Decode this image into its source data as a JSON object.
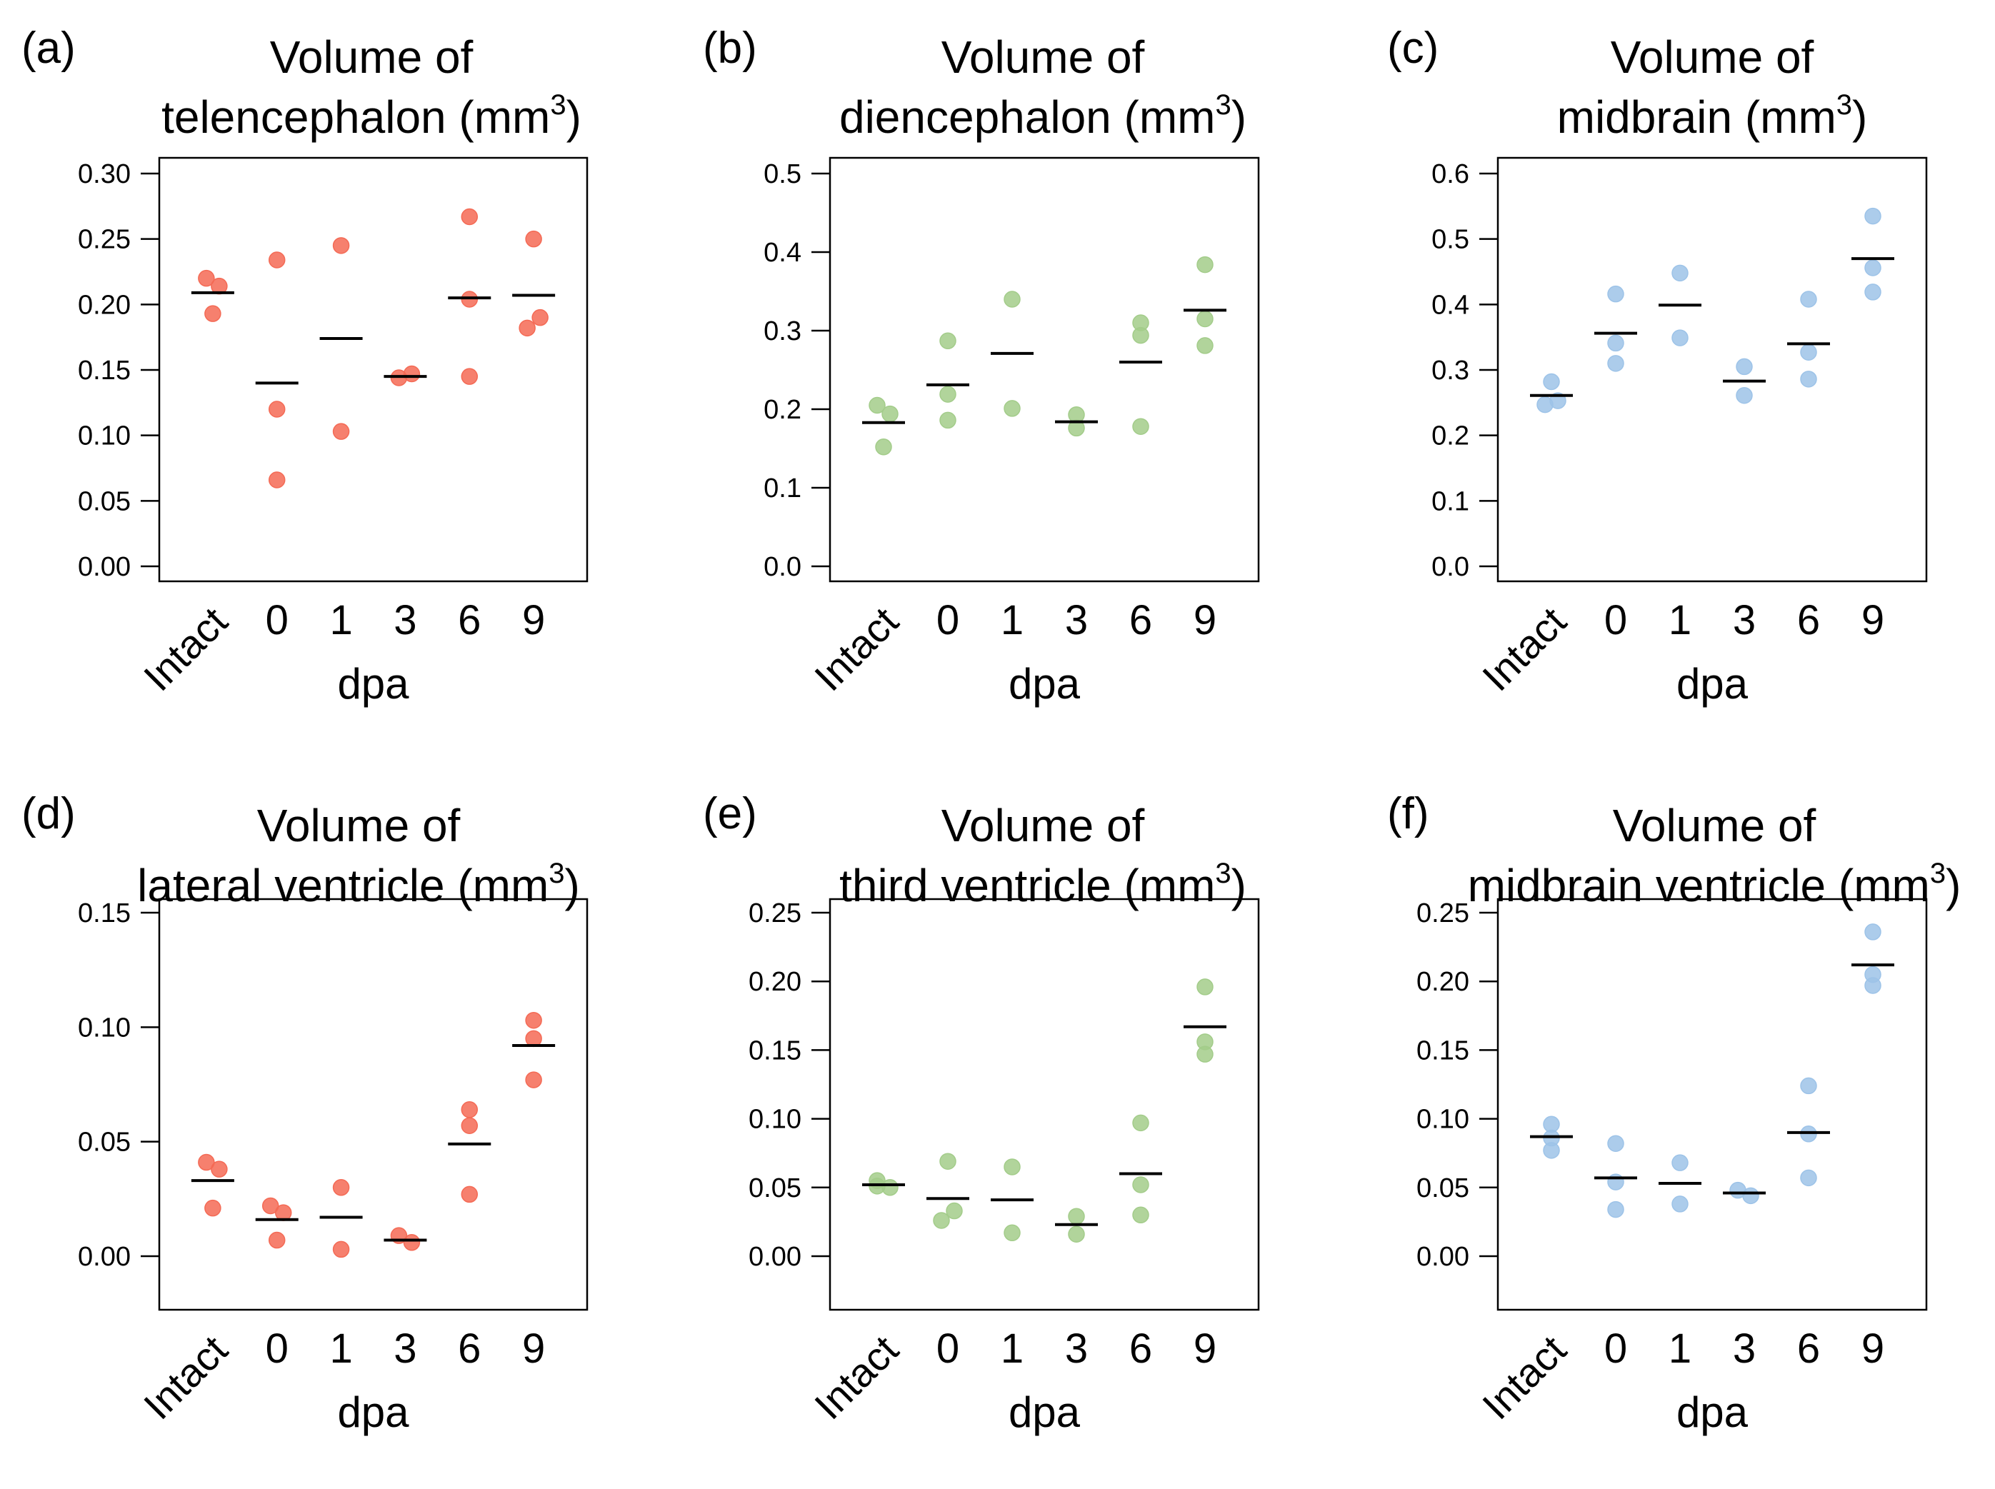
{
  "chart_data": [
    {
      "type": "scatter",
      "panel_label": "(a)",
      "title_line1": "Volume of",
      "title_line2": "telencephalon (mm",
      "title_sup": "3",
      "title_close": ")",
      "xlabel": "dpa",
      "ylabel": "",
      "categories": [
        "Intact",
        "0",
        "1",
        "3",
        "6",
        "9"
      ],
      "ylim": [
        0,
        0.3
      ],
      "yticks": [
        "0.00",
        "0.05",
        "0.10",
        "0.15",
        "0.20",
        "0.25",
        "0.30"
      ],
      "color": "#F46A55",
      "points": [
        [
          0.22,
          0.214,
          0.193
        ],
        [
          0.234,
          0.12,
          0.066
        ],
        [
          0.245,
          0.103
        ],
        [
          0.144,
          0.147
        ],
        [
          0.267,
          0.204,
          0.145
        ],
        [
          0.25,
          0.19,
          0.182
        ]
      ],
      "means": [
        0.209,
        0.14,
        0.174,
        0.145,
        0.205,
        0.207
      ]
    },
    {
      "type": "scatter",
      "panel_label": "(b)",
      "title_line1": "Volume of",
      "title_line2": "diencephalon (mm",
      "title_sup": "3",
      "title_close": ")",
      "xlabel": "dpa",
      "ylabel": "",
      "categories": [
        "Intact",
        "0",
        "1",
        "3",
        "6",
        "9"
      ],
      "ylim": [
        0,
        0.5
      ],
      "yticks": [
        "0.0",
        "0.1",
        "0.2",
        "0.3",
        "0.4",
        "0.5"
      ],
      "color": "#A3CC8A",
      "points": [
        [
          0.205,
          0.194,
          0.152
        ],
        [
          0.287,
          0.219,
          0.186
        ],
        [
          0.34,
          0.201
        ],
        [
          0.193,
          0.176
        ],
        [
          0.31,
          0.294,
          0.178
        ],
        [
          0.384,
          0.315,
          0.281
        ]
      ],
      "means": [
        0.183,
        0.231,
        0.271,
        0.184,
        0.26,
        0.326
      ]
    },
    {
      "type": "scatter",
      "panel_label": "(c)",
      "title_line1": "Volume of",
      "title_line2": "midbrain (mm",
      "title_sup": "3",
      "title_close": ")",
      "xlabel": "dpa",
      "ylabel": "",
      "categories": [
        "Intact",
        "0",
        "1",
        "3",
        "6",
        "9"
      ],
      "ylim": [
        0,
        0.6
      ],
      "yticks": [
        "0.0",
        "0.1",
        "0.2",
        "0.3",
        "0.4",
        "0.5",
        "0.6"
      ],
      "color": "#9DC3E8",
      "points": [
        [
          0.282,
          0.253,
          0.247
        ],
        [
          0.416,
          0.341,
          0.31
        ],
        [
          0.448,
          0.349
        ],
        [
          0.305,
          0.261
        ],
        [
          0.408,
          0.327,
          0.286
        ],
        [
          0.535,
          0.456,
          0.419
        ]
      ],
      "means": [
        0.261,
        0.356,
        0.399,
        0.283,
        0.34,
        0.47
      ]
    },
    {
      "type": "scatter",
      "panel_label": "(d)",
      "title_line1": "Volume of",
      "title_line2": "lateral ventricle (mm",
      "title_sup": "3",
      "title_close": ")",
      "xlabel": "dpa",
      "ylabel": "",
      "categories": [
        "Intact",
        "0",
        "1",
        "3",
        "6",
        "9"
      ],
      "ylim": [
        0,
        0.15
      ],
      "yticks": [
        "0.00",
        "0.05",
        "0.10",
        "0.15"
      ],
      "color": "#F46A55",
      "points": [
        [
          0.041,
          0.038,
          0.021
        ],
        [
          0.022,
          0.019,
          0.007
        ],
        [
          0.03,
          0.003
        ],
        [
          0.009,
          0.006
        ],
        [
          0.064,
          0.057,
          0.027
        ],
        [
          0.103,
          0.095,
          0.077
        ]
      ],
      "means": [
        0.033,
        0.016,
        0.017,
        0.007,
        0.049,
        0.092
      ]
    },
    {
      "type": "scatter",
      "panel_label": "(e)",
      "title_line1": "Volume of",
      "title_line2": "third ventricle (mm",
      "title_sup": "3",
      "title_close": ")",
      "xlabel": "dpa",
      "ylabel": "",
      "categories": [
        "Intact",
        "0",
        "1",
        "3",
        "6",
        "9"
      ],
      "ylim": [
        0,
        0.25
      ],
      "yticks": [
        "0.00",
        "0.05",
        "0.10",
        "0.15",
        "0.20",
        "0.25"
      ],
      "color": "#A3CC8A",
      "points": [
        [
          0.055,
          0.05,
          0.051
        ],
        [
          0.069,
          0.033,
          0.026
        ],
        [
          0.065,
          0.017
        ],
        [
          0.029,
          0.016
        ],
        [
          0.097,
          0.052,
          0.03
        ],
        [
          0.196,
          0.156,
          0.147
        ]
      ],
      "means": [
        0.052,
        0.042,
        0.041,
        0.023,
        0.06,
        0.167
      ]
    },
    {
      "type": "scatter",
      "panel_label": "(f)",
      "title_line1": "Volume of",
      "title_line2": "midbrain ventricle (mm",
      "title_sup": "3",
      "title_close": ")",
      "xlabel": "dpa",
      "ylabel": "",
      "categories": [
        "Intact",
        "0",
        "1",
        "3",
        "6",
        "9"
      ],
      "ylim": [
        0,
        0.25
      ],
      "yticks": [
        "0.00",
        "0.05",
        "0.10",
        "0.15",
        "0.20",
        "0.25"
      ],
      "color": "#9DC3E8",
      "points": [
        [
          0.096,
          0.086,
          0.077
        ],
        [
          0.082,
          0.054,
          0.034
        ],
        [
          0.068,
          0.038
        ],
        [
          0.048,
          0.044
        ],
        [
          0.124,
          0.089,
          0.057
        ],
        [
          0.236,
          0.205,
          0.197
        ]
      ],
      "means": [
        0.087,
        0.057,
        0.053,
        0.046,
        0.09,
        0.212
      ]
    }
  ]
}
